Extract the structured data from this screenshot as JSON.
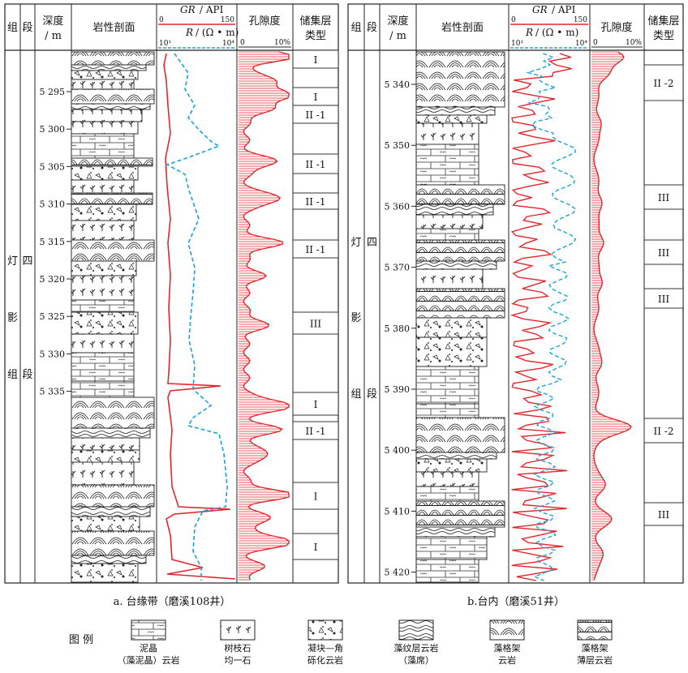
{
  "wells": [
    {
      "id": "a",
      "caption": "a. 台缘带（磨溪108井）",
      "headers": {
        "group": "组",
        "member": "段",
        "depth_l1": "深度",
        "depth_l2": "/ m",
        "lith": "岩性剖面",
        "gr_name": "GR",
        "gr_unit": "/ API",
        "gr_min": "0",
        "gr_max": "150",
        "r_name": "R",
        "r_unit": "/ (Ω • m)",
        "r_min": "10¹",
        "r_max": "10⁴",
        "por": "孔隙度",
        "por_min": "0",
        "por_max": "10%",
        "res_l1": "储集层",
        "res_l2": "类型"
      },
      "formation_chars": [
        "灯",
        "影",
        "组"
      ],
      "member_chars": [
        "四",
        "段"
      ],
      "depth_ticks": [
        "5 295",
        "5 300",
        "5 305",
        "5 310",
        "5 315",
        "5 320",
        "5 325",
        "5 330",
        "5 335"
      ],
      "reservoir_labels": [
        "I",
        "I",
        "II -1",
        "II -1",
        "II -1",
        "II -1",
        "III",
        "I",
        "II -1",
        "I",
        "I"
      ]
    },
    {
      "id": "b",
      "caption": "b.台内（磨溪51井）",
      "headers": {
        "group": "组",
        "member": "段",
        "depth_l1": "深度",
        "depth_l2": "/ m",
        "lith": "岩性剖面",
        "gr_name": "GR",
        "gr_unit": "/ API",
        "gr_min": "0",
        "gr_max": "150",
        "r_name": "R",
        "r_unit": "/ (Ω • m)",
        "r_min": "10¹",
        "r_max": "10⁴",
        "por": "孔隙度",
        "por_min": "0",
        "por_max": "10%",
        "res_l1": "储集层",
        "res_l2": "类型"
      },
      "formation_chars": [
        "灯",
        "影",
        "组"
      ],
      "member_chars": [
        "四",
        "段"
      ],
      "depth_ticks": [
        "5 340",
        "5 350",
        "5 360",
        "5 370",
        "5 380",
        "5 390",
        "5 400",
        "5 410",
        "5 420"
      ],
      "reservoir_labels": [
        "II -2",
        "III",
        "III",
        "III",
        "II -2",
        "III"
      ]
    }
  ],
  "legend": {
    "title": "图 例",
    "items": [
      {
        "key": "micrite",
        "line1": "泥晶",
        "line2": "（藻泥晶）云岩"
      },
      {
        "key": "dendritic",
        "line1": "树枝石",
        "line2": "均一石"
      },
      {
        "key": "clotted",
        "line1": "凝块—角",
        "line2": "砾化云岩"
      },
      {
        "key": "laminated",
        "line1": "藻纹层云岩",
        "line2": "（藻席）"
      },
      {
        "key": "framework",
        "line1": "藻格架",
        "line2": "云岩"
      },
      {
        "key": "framework_thin",
        "line1": "藻格架",
        "line2": "薄层云岩"
      }
    ]
  },
  "colors": {
    "gr": "#1aa3d9",
    "r": "#e3262d",
    "porosity": "#e3262d",
    "line": "#222222"
  }
}
